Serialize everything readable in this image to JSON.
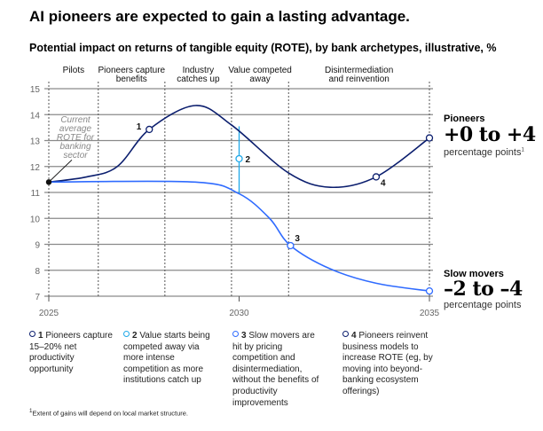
{
  "title": "AI pioneers are expected to gain a lasting advantage.",
  "subtitle": "Potential impact on returns of tangible equity (ROTE), by bank archetypes, illustrative, %",
  "chart_data": {
    "type": "line",
    "title": "Potential impact on returns of tangible equity (ROTE), by bank archetypes, illustrative, %",
    "xlim": [
      2025,
      2035
    ],
    "ylim": [
      7,
      15
    ],
    "x_ticks": [
      "2025",
      "2030",
      "2035"
    ],
    "y_ticks": [
      "15",
      "14",
      "13",
      "12",
      "11",
      "10",
      "9",
      "8",
      "7"
    ],
    "grid": true,
    "phases": [
      {
        "label": "Pilots",
        "start": 2025,
        "end": 2026.3
      },
      {
        "label": "Pioneers capture benefits",
        "start": 2026.3,
        "end": 2028.05
      },
      {
        "label": "Industry catches up",
        "start": 2028.05,
        "end": 2029.8
      },
      {
        "label": "Value competed away",
        "start": 2029.8,
        "end": 2031.3
      },
      {
        "label": "Disintermediation and reinvention",
        "start": 2031.3,
        "end": 2035
      }
    ],
    "series": [
      {
        "name": "Pioneers",
        "color": "#0b1e6e",
        "points": [
          [
            2025,
            11.4
          ],
          [
            2026,
            11.6
          ],
          [
            2026.8,
            12.0
          ],
          [
            2027.64,
            13.43
          ],
          [
            2028.85,
            14.35
          ],
          [
            2029.8,
            13.6
          ],
          [
            2031.3,
            11.75
          ],
          [
            2032.4,
            11.2
          ],
          [
            2033.6,
            11.6
          ],
          [
            2035,
            13.1
          ]
        ]
      },
      {
        "name": "Slow movers",
        "color": "#2f6bff",
        "points": [
          [
            2025,
            11.4
          ],
          [
            2028.85,
            11.4
          ],
          [
            2030,
            10.95
          ],
          [
            2030.8,
            10.0
          ],
          [
            2031.35,
            8.95
          ],
          [
            2032.4,
            8.05
          ],
          [
            2033.6,
            7.5
          ],
          [
            2035,
            7.2
          ]
        ]
      }
    ],
    "annotations": [
      {
        "label": "1",
        "x": 2027.64,
        "y": 13.43,
        "color": "#0b1e6e"
      },
      {
        "label": "2",
        "x": 2030,
        "y": 12.3,
        "color": "#1fa8e8"
      },
      {
        "label": "3",
        "x": 2031.35,
        "y": 8.95,
        "color": "#2f6bff"
      },
      {
        "label": "4",
        "x": 2033.6,
        "y": 11.6,
        "color": "#0b1e6e"
      }
    ],
    "current_note": "Current average ROTE for banking sector",
    "current_value": 11.4
  },
  "right": {
    "pioneers_label": "Pioneers",
    "pioneers_range": "+0 to +4",
    "pioneers_unit": "percentage points",
    "pioneers_sup": "1",
    "slow_label": "Slow movers",
    "slow_range": "–2 to –4",
    "slow_unit": "percentage points"
  },
  "notes": [
    {
      "num": "1",
      "text": "Pioneers capture 15–20% net productivity opportunity",
      "color": "#0b1e6e"
    },
    {
      "num": "2",
      "text": "Value starts being competed away via more intense competition as more institutions catch up",
      "color": "#1fa8e8"
    },
    {
      "num": "3",
      "text": "Slow movers are hit by pricing competition and disintermediation, without the benefits of productivity improvements",
      "color": "#2f6bff"
    },
    {
      "num": "4",
      "text": "Pioneers reinvent business models to increase ROTE (eg, by moving into beyond-banking ecosystem offerings)",
      "color": "#0b1e6e"
    }
  ],
  "footnote_sup": "1",
  "footnote": "Extent of gains will depend on local market structure."
}
